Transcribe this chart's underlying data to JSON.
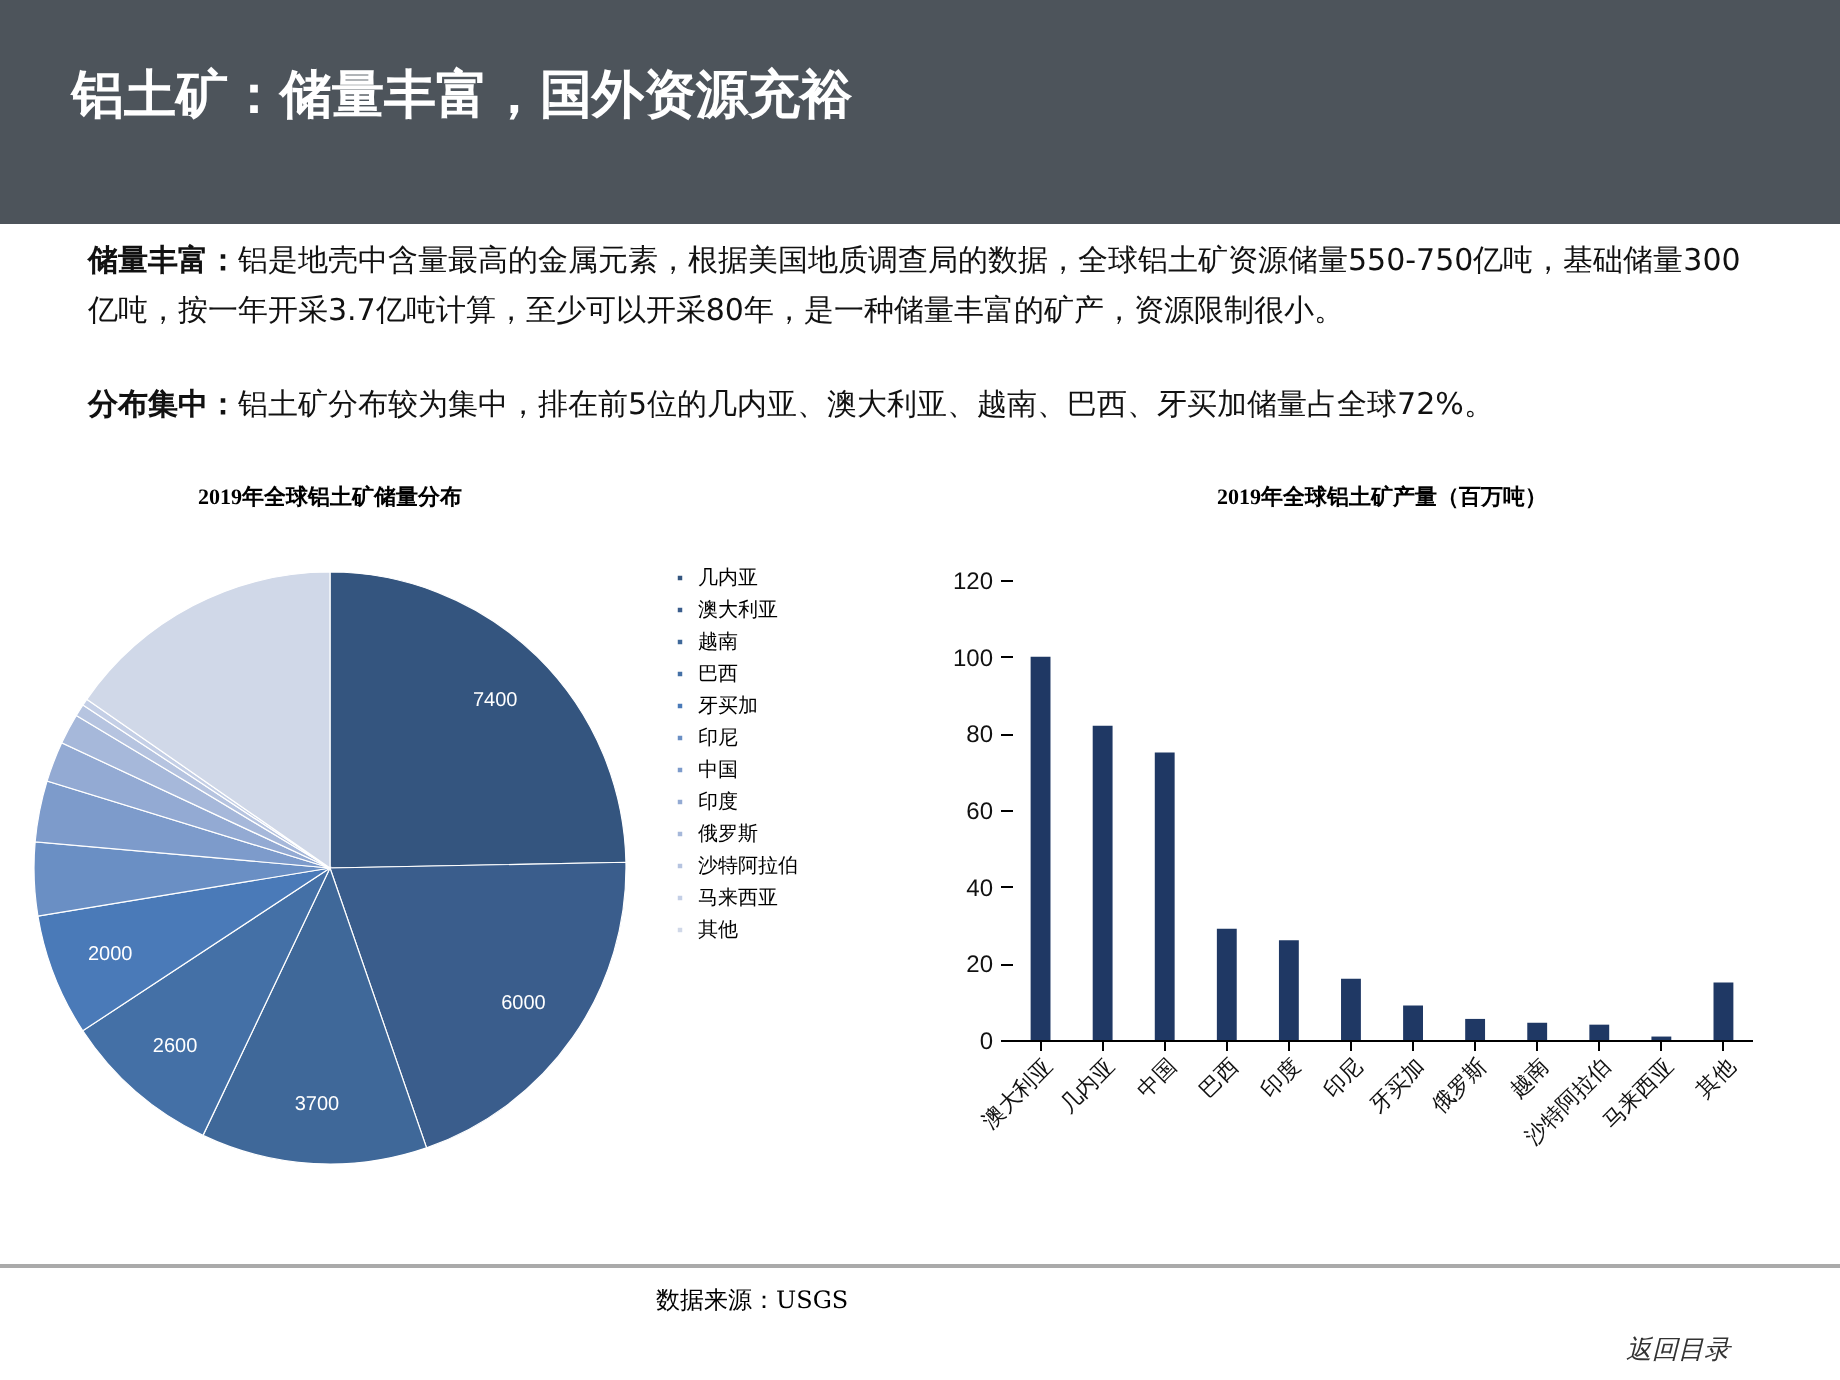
{
  "chart_data": [
    {
      "type": "other",
      "title": "铝土矿：储量丰富，国外资源充裕",
      "annotations": [
        "储量丰富：铝是地壳中含量最高的金属元素，根据美国地质调查局的数据，全球铝土矿资源储量550-750亿吨，基础储量300亿吨，按一年开采3.7亿吨计算，至少可以开采80年，是一种储量丰富的矿产，资源限制很小。",
        "分布集中：铝土矿分布较为集中，排在前5位的几内亚、澳大利亚、越南、巴西、牙买加储量占全球72%。",
        "数据来源：USGS",
        "返回目录"
      ]
    },
    {
      "type": "pie",
      "title": "2019年全球铝土矿储量分布",
      "legend": "right",
      "categories": [
        "几内亚",
        "澳大利亚",
        "越南",
        "巴西",
        "牙买加",
        "印尼",
        "中国",
        "印度",
        "俄罗斯",
        "沙特阿拉伯",
        "马来西亚",
        "其他"
      ],
      "values": [
        7400,
        6000,
        3700,
        2600,
        2000,
        1200,
        1000,
        660,
        500,
        200,
        110,
        4600
      ],
      "value_labels": [
        "7400",
        "6000",
        "3700",
        "2600",
        "2000",
        null,
        null,
        null,
        null,
        null,
        null,
        null
      ],
      "colors": [
        "#34557f",
        "#3a5d8c",
        "#3f6899",
        "#4470a6",
        "#4a7ab8",
        "#6a8fc4",
        "#7d9bcb",
        "#93aad3",
        "#a6b8da",
        "#b6c4e0",
        "#c4cfe6",
        "#d0d8e8"
      ]
    },
    {
      "type": "bar",
      "title": "2019年全球铝土矿产量（百万吨）",
      "categories": [
        "澳大利亚",
        "几内亚",
        "中国",
        "巴西",
        "印度",
        "印尼",
        "牙买加",
        "俄罗斯",
        "越南",
        "沙特阿拉伯",
        "马来西亚",
        "其他"
      ],
      "values": [
        100,
        82,
        75,
        29,
        26,
        16,
        9,
        5.5,
        4.5,
        4,
        0.9,
        15
      ],
      "color": "#1f3864",
      "ylim": [
        0,
        120
      ],
      "yticks": [
        0,
        20,
        40,
        60,
        80,
        100,
        120
      ],
      "grid": false
    }
  ]
}
